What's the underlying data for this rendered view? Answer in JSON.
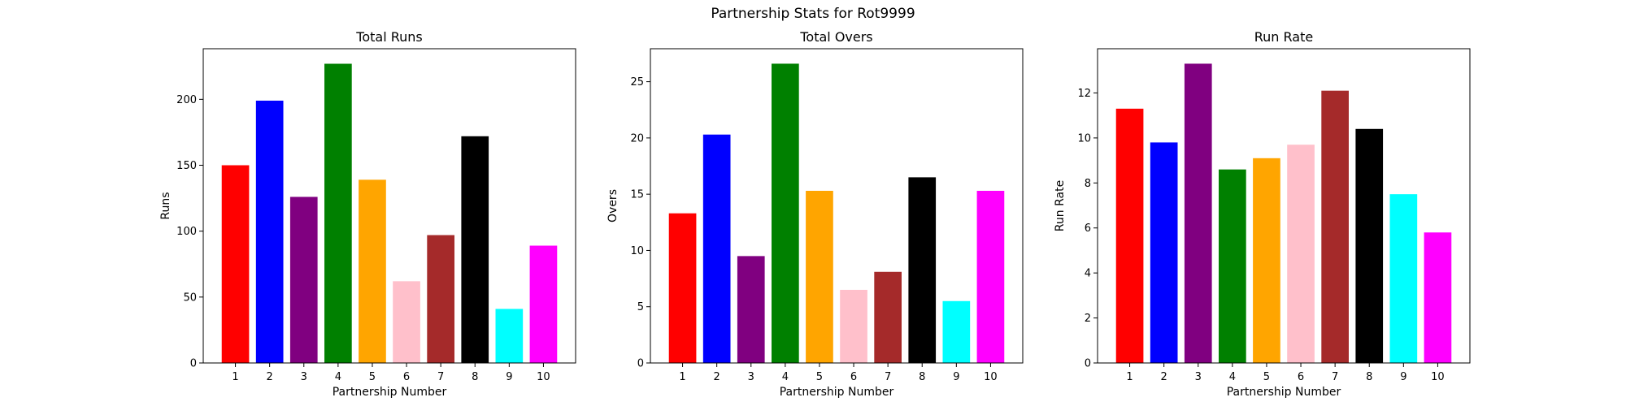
{
  "figure": {
    "title": "Partnership Stats for Rot9999"
  },
  "chart_data": [
    {
      "type": "bar",
      "title": "Total Runs",
      "xlabel": "Partnership Number",
      "ylabel": "Runs",
      "categories": [
        "1",
        "2",
        "3",
        "4",
        "5",
        "6",
        "7",
        "8",
        "9",
        "10"
      ],
      "values": [
        150,
        199,
        126,
        227,
        139,
        62,
        97,
        172,
        41,
        89
      ],
      "colors": [
        "#ff0000",
        "#0000ff",
        "#800080",
        "#008000",
        "#ffa500",
        "#ffc0cb",
        "#a52a2a",
        "#000000",
        "#00ffff",
        "#ff00ff"
      ],
      "ylim": [
        0,
        238.4
      ],
      "yticks": [
        0,
        50,
        100,
        150,
        200
      ],
      "grid": false
    },
    {
      "type": "bar",
      "title": "Total Overs",
      "xlabel": "Partnership Number",
      "ylabel": "Overs",
      "categories": [
        "1",
        "2",
        "3",
        "4",
        "5",
        "6",
        "7",
        "8",
        "9",
        "10"
      ],
      "values": [
        13.3,
        20.3,
        9.5,
        26.6,
        15.3,
        6.5,
        8.1,
        16.5,
        5.5,
        15.3
      ],
      "colors": [
        "#ff0000",
        "#0000ff",
        "#800080",
        "#008000",
        "#ffa500",
        "#ffc0cb",
        "#a52a2a",
        "#000000",
        "#00ffff",
        "#ff00ff"
      ],
      "ylim": [
        0,
        27.93
      ],
      "yticks": [
        0,
        5,
        10,
        15,
        20,
        25
      ],
      "grid": false
    },
    {
      "type": "bar",
      "title": "Run Rate",
      "xlabel": "Partnership Number",
      "ylabel": "Run Rate",
      "categories": [
        "1",
        "2",
        "3",
        "4",
        "5",
        "6",
        "7",
        "8",
        "9",
        "10"
      ],
      "values": [
        11.3,
        9.8,
        13.3,
        8.6,
        9.1,
        9.7,
        12.1,
        10.4,
        7.5,
        5.8
      ],
      "colors": [
        "#ff0000",
        "#0000ff",
        "#800080",
        "#008000",
        "#ffa500",
        "#ffc0cb",
        "#a52a2a",
        "#000000",
        "#00ffff",
        "#ff00ff"
      ],
      "ylim": [
        0,
        13.965
      ],
      "yticks": [
        0,
        2,
        4,
        6,
        8,
        10,
        12
      ],
      "grid": false
    }
  ]
}
